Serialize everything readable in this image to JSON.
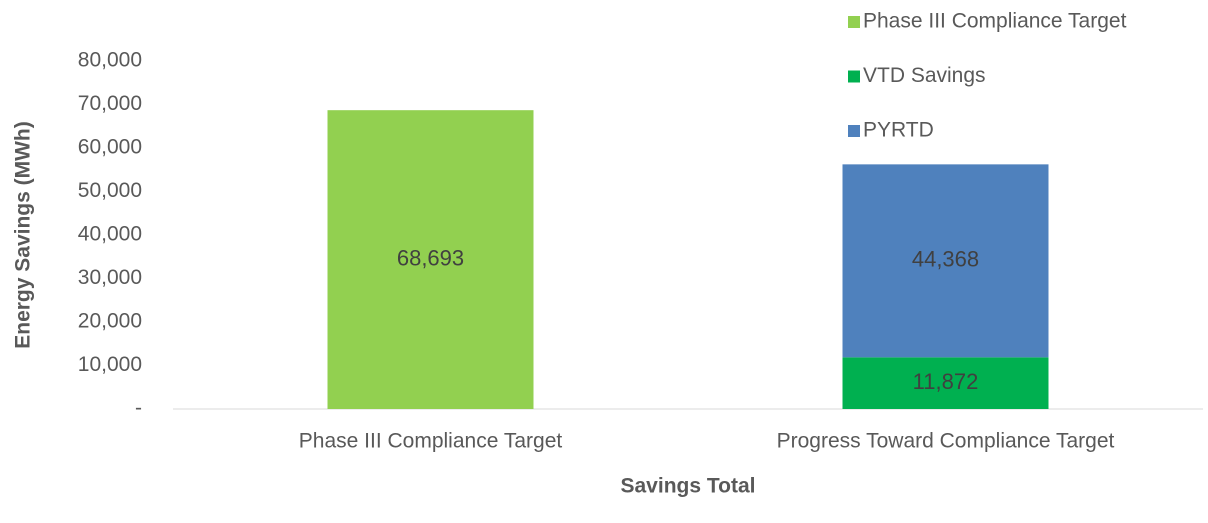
{
  "chart_data": {
    "type": "stacked_bar",
    "categories": [
      "Phase III Compliance Target",
      "Progress Toward Compliance Target"
    ],
    "series": [
      {
        "name": "Phase III Compliance Target",
        "color": "#92d050",
        "values": [
          68693,
          null
        ],
        "value_labels": [
          "68,693",
          null
        ]
      },
      {
        "name": "VTD Savings",
        "color": "#00b050",
        "values": [
          null,
          11872
        ],
        "value_labels": [
          null,
          "11,872"
        ]
      },
      {
        "name": "PYRTD",
        "color": "#4f81bd",
        "values": [
          null,
          44368
        ],
        "value_labels": [
          null,
          "44,368"
        ]
      }
    ],
    "ylabel": "Energy Savings (MWh)",
    "xlabel": "Savings Total",
    "ylim": [
      0,
      80000
    ],
    "yticks": [
      {
        "value": 0,
        "label": "-"
      },
      {
        "value": 10000,
        "label": "10,000"
      },
      {
        "value": 20000,
        "label": "20,000"
      },
      {
        "value": 30000,
        "label": "30,000"
      },
      {
        "value": 40000,
        "label": "40,000"
      },
      {
        "value": 50000,
        "label": "50,000"
      },
      {
        "value": 60000,
        "label": "60,000"
      },
      {
        "value": 70000,
        "label": "70,000"
      },
      {
        "value": 80000,
        "label": "80,000"
      }
    ],
    "legend": "top-right",
    "grid": false
  }
}
